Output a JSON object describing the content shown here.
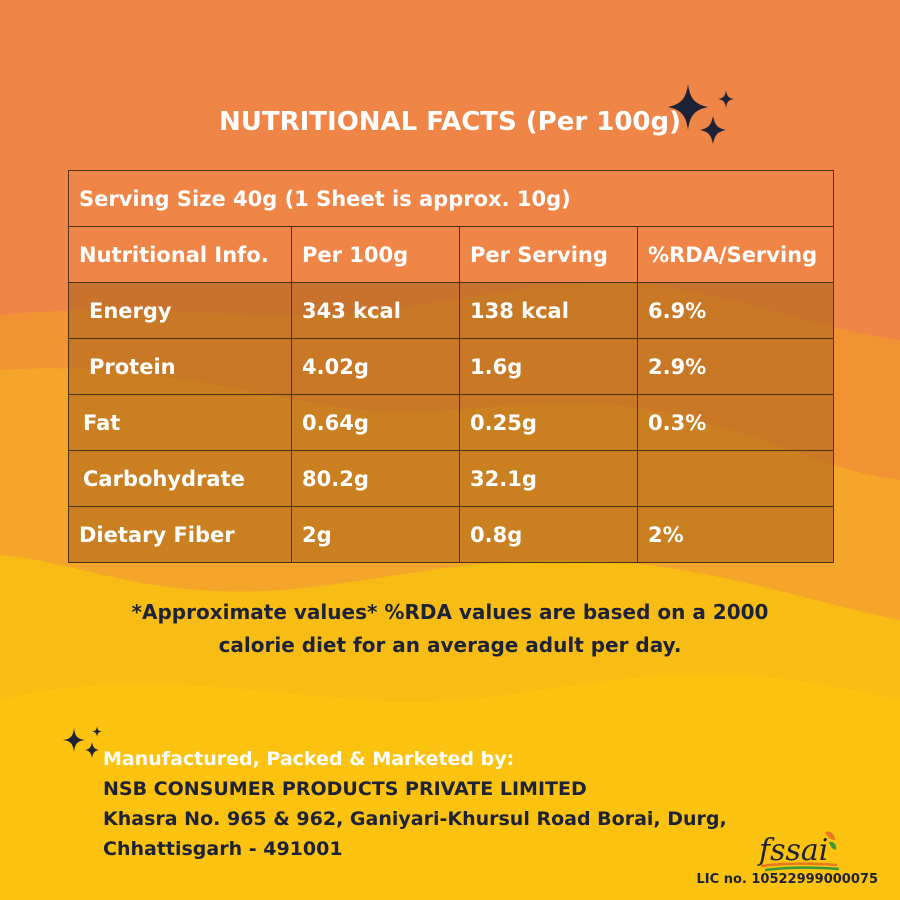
{
  "title": "NUTRITIONAL FACTS (Per 100g)",
  "serving_size": "Serving Size 40g (1 Sheet is approx. 10g)",
  "table": {
    "headers": [
      "Nutritional Info.",
      "Per 100g",
      "Per Serving",
      "%RDA/Serving"
    ],
    "rows": [
      {
        "nutrient": "Energy",
        "per100": "343 kcal",
        "serving": "138 kcal",
        "rda": "6.9%"
      },
      {
        "nutrient": "Protein",
        "per100": "4.02g",
        "serving": "1.6g",
        "rda": "2.9%"
      },
      {
        "nutrient": "Fat",
        "per100": "0.64g",
        "serving": "0.25g",
        "rda": "0.3%"
      },
      {
        "nutrient": "Carbohydrate",
        "per100": "80.2g",
        "serving": "32.1g",
        "rda": ""
      },
      {
        "nutrient": "Dietary Fiber",
        "per100": "2g",
        "serving": "0.8g",
        "rda": "2%"
      }
    ]
  },
  "note": {
    "line1": "*Approximate values* %RDA values are based on a 2000",
    "line2": "calorie diet for an average adult per day."
  },
  "manufacturer": {
    "label": "Manufactured, Packed & Marketed by:",
    "company": "NSB CONSUMER PRODUCTS PRIVATE LIMITED",
    "address1": "Khasra No. 965 & 962, Ganiyari-Khursul Road Borai, Durg,",
    "address2": "Chhattisgarh - 491001"
  },
  "fssai": {
    "logo_text": "fssai",
    "license": "LIC no. 10522999000075"
  },
  "colors": {
    "background_top": "#ef8546",
    "background_bottom": "#f8bd14",
    "text_dark": "#1e2236",
    "table_fill": "#b5711e",
    "sparkle": "#1e2236"
  },
  "icons": [
    "sparkle-icon",
    "fssai-logo"
  ]
}
